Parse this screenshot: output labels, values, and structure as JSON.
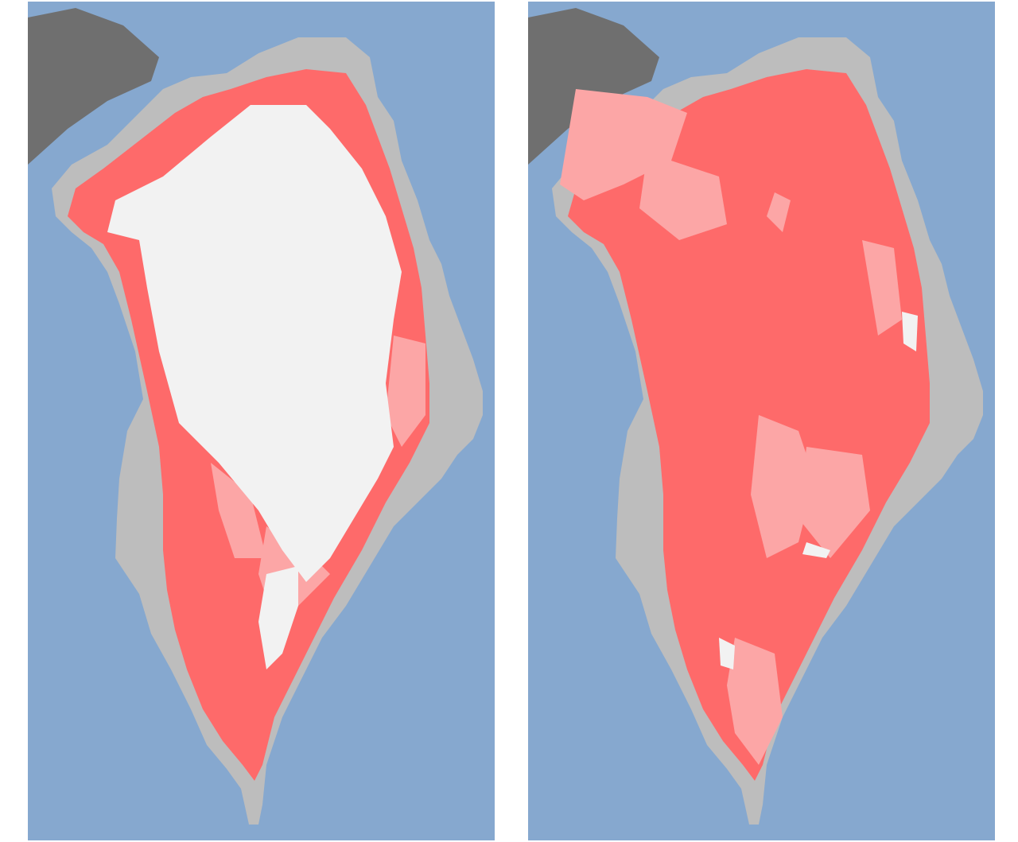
{
  "maps": [
    {
      "id": "left",
      "melt_extent": "partial"
    },
    {
      "id": "right",
      "melt_extent": "extensive"
    }
  ],
  "colors": {
    "ocean": "#86a8cf",
    "land": "#bdbdbd",
    "other_land": "#6f6f6f",
    "melt": "#fe6a6a",
    "probable_melt": "#fca6a6",
    "no_melt": "#f2f2f2"
  }
}
